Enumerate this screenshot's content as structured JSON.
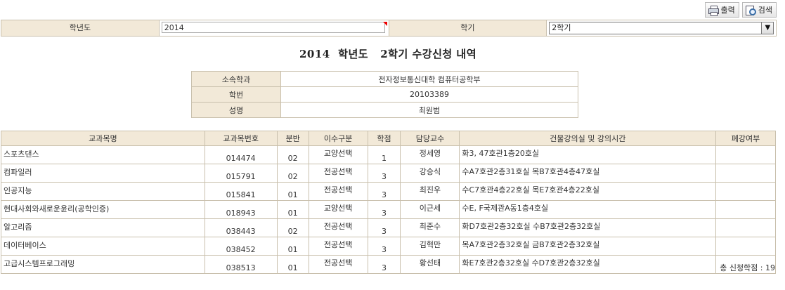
{
  "toolbar": {
    "print_label": "출력",
    "search_label": "검색",
    "print_icon": "printer-icon",
    "search_icon": "search-document-icon"
  },
  "filter": {
    "year_label": "학년도",
    "year_value": "2014",
    "semester_label": "학기",
    "semester_value": "2학기"
  },
  "title": {
    "year": "2014",
    "year_suffix": "학년도",
    "rest": "2학기 수강신청 내역"
  },
  "student": {
    "dept_label": "소속학과",
    "dept_value": "전자정보통신대학 컴퓨터공학부",
    "id_label": "학번",
    "id_value": "20103389",
    "name_label": "성명",
    "name_value": "최원범"
  },
  "courses": {
    "headers": [
      "교과목명",
      "교과목번호",
      "분반",
      "이수구분",
      "학점",
      "담당교수",
      "건물강의실 및 강의시간",
      "폐강여부"
    ],
    "rows": [
      {
        "name": "스포츠댄스",
        "code": "014474",
        "section": "02",
        "type": "교양선택",
        "credit": "1",
        "prof": "정세영",
        "room": "화3, 47호관1층20호실",
        "closed": ""
      },
      {
        "name": "컴파일러",
        "code": "015791",
        "section": "02",
        "type": "전공선택",
        "credit": "3",
        "prof": "강승식",
        "room": "수A7호관2층31호실 목B7호관4층47호실",
        "closed": ""
      },
      {
        "name": "인공지능",
        "code": "015841",
        "section": "01",
        "type": "전공선택",
        "credit": "3",
        "prof": "최진우",
        "room": "수C7호관4층22호실 목E7호관4층22호실",
        "closed": ""
      },
      {
        "name": "현대사회와새로운윤리(공학인증)",
        "code": "018943",
        "section": "01",
        "type": "교양선택",
        "credit": "3",
        "prof": "이근세",
        "room": "수E, F국제관A동1층4호실",
        "closed": ""
      },
      {
        "name": "알고리즘",
        "code": "038443",
        "section": "02",
        "type": "전공선택",
        "credit": "3",
        "prof": "최준수",
        "room": "화D7호관2층32호실 수B7호관2층32호실",
        "closed": ""
      },
      {
        "name": "데이터베이스",
        "code": "038452",
        "section": "01",
        "type": "전공선택",
        "credit": "3",
        "prof": "김혁만",
        "room": "목A7호관2층32호실 금B7호관2층32호실",
        "closed": ""
      },
      {
        "name": "고급시스템프로그래밍",
        "code": "038513",
        "section": "01",
        "type": "전공선택",
        "credit": "3",
        "prof": "황선태",
        "room": "화E7호관2층32호실 수D7호관2층32호실",
        "closed": ""
      }
    ]
  },
  "total": {
    "label": "총 신청학점 : ",
    "value": "19"
  },
  "colors": {
    "header_bg": "#f2e9d8",
    "border": "#c9c0ad",
    "required_mark": "#ee0000"
  }
}
